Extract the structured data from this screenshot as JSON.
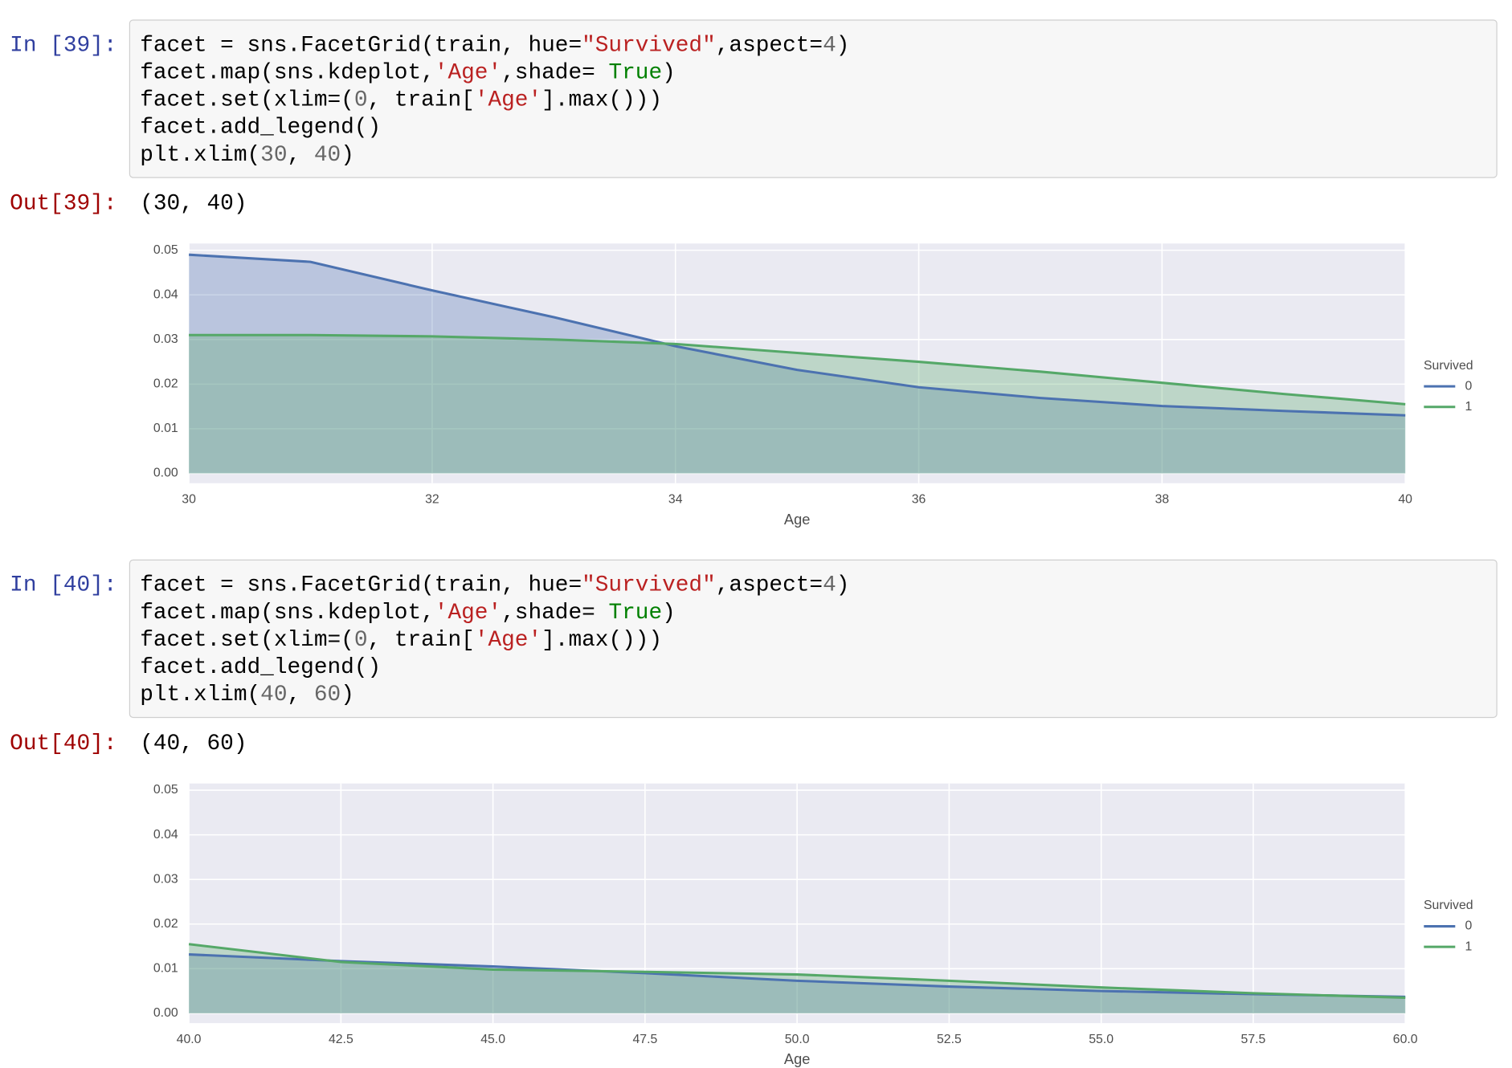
{
  "cells": [
    {
      "prompt": "In [39]:",
      "code": [
        "facet = sns.FacetGrid(train, hue=\"Survived\",aspect=4)",
        "facet.map(sns.kdeplot,'Age',shade= True)",
        "facet.set(xlim=(0, train['Age'].max()))",
        "facet.add_legend()",
        "plt.xlim(30, 40)"
      ],
      "out_prompt": "Out[39]:",
      "output": "(30, 40)",
      "chart": {
        "type": "line",
        "xlabel": "Age",
        "legend_title": "Survived",
        "grid": true,
        "fill": true,
        "x": [
          30,
          31,
          32,
          33,
          34,
          35,
          36,
          37,
          38,
          39,
          40
        ],
        "series": [
          {
            "name": "0",
            "color": "#4c72b0",
            "values": [
              0.049,
              0.0474,
              0.041,
              0.035,
              0.0285,
              0.0232,
              0.0193,
              0.0169,
              0.0151,
              0.014,
              0.013
            ]
          },
          {
            "name": "1",
            "color": "#55a868",
            "values": [
              0.031,
              0.031,
              0.0307,
              0.03,
              0.029,
              0.027,
              0.025,
              0.0228,
              0.0203,
              0.0178,
              0.0155
            ]
          }
        ],
        "xlim": [
          30,
          40
        ],
        "xticks": [
          30,
          32,
          34,
          36,
          38,
          40
        ],
        "ylim": [
          -0.0022,
          0.0515
        ],
        "yticks": [
          {
            "value": 0,
            "label": "0.00"
          },
          0.01,
          0.02,
          0.03,
          0.04,
          0.05
        ]
      }
    },
    {
      "prompt": "In [40]:",
      "code": [
        "facet = sns.FacetGrid(train, hue=\"Survived\",aspect=4)",
        "facet.map(sns.kdeplot,'Age',shade= True)",
        "facet.set(xlim=(0, train['Age'].max()))",
        "facet.add_legend()",
        "plt.xlim(40, 60)"
      ],
      "out_prompt": "Out[40]:",
      "output": "(40, 60)",
      "chart": {
        "type": "line",
        "xlabel": "Age",
        "legend_title": "Survived",
        "grid": true,
        "fill": true,
        "x": [
          40,
          42.5,
          45,
          47.5,
          50,
          52.5,
          55,
          57.5,
          60
        ],
        "series": [
          {
            "name": "0",
            "color": "#4c72b0",
            "values": [
              0.0132,
              0.0117,
              0.0105,
              0.009,
              0.0073,
              0.006,
              0.005,
              0.0043,
              0.0037
            ]
          },
          {
            "name": "1",
            "color": "#55a868",
            "values": [
              0.0155,
              0.0115,
              0.0098,
              0.0093,
              0.0087,
              0.0073,
              0.0058,
              0.0045,
              0.0035
            ]
          }
        ],
        "xlim": [
          40,
          60
        ],
        "xticks": [
          {
            "value": 40,
            "label": "40.0"
          },
          {
            "value": 42.5,
            "label": "42.5"
          },
          {
            "value": 45,
            "label": "45.0"
          },
          {
            "value": 47.5,
            "label": "47.5"
          },
          {
            "value": 50,
            "label": "50.0"
          },
          {
            "value": 52.5,
            "label": "52.5"
          },
          {
            "value": 55,
            "label": "55.0"
          },
          {
            "value": 57.5,
            "label": "57.5"
          },
          {
            "value": 60,
            "label": "60.0"
          }
        ],
        "ylim": [
          -0.0022,
          0.0515
        ],
        "yticks": [
          {
            "value": 0,
            "label": "0.00"
          },
          0.01,
          0.02,
          0.03,
          0.04,
          0.05
        ]
      }
    }
  ]
}
